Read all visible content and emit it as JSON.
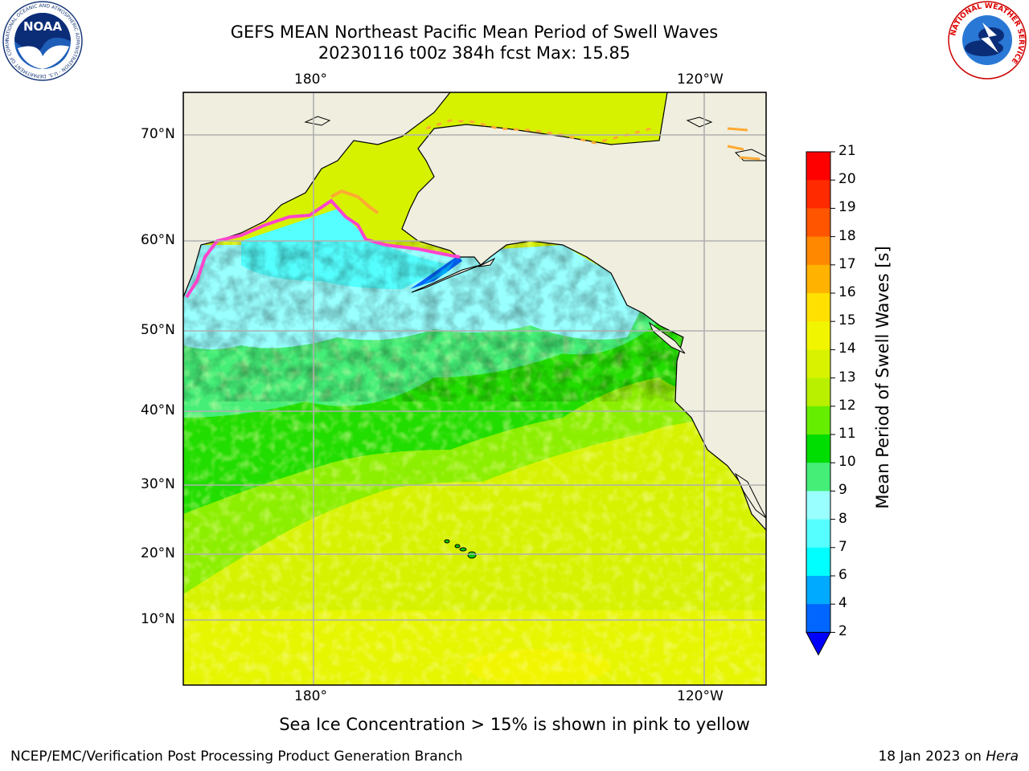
{
  "header": {
    "title_line1": "GEFS MEAN Northeast Pacific Mean Period of Swell Waves",
    "title_line2": "20230116 t00z 384h fcst   Max: 15.85"
  },
  "map": {
    "region": "Northeast Pacific",
    "variable": "Mean Period of Swell Waves",
    "units": "s",
    "max_value": 15.85,
    "top_lon_labels": [
      "180°",
      "120°W"
    ],
    "bottom_lon_labels": [
      "180°",
      "120°W"
    ],
    "lat_labels": [
      "70°N",
      "60°N",
      "50°N",
      "40°N",
      "30°N",
      "20°N",
      "10°N"
    ],
    "colors": {
      "land": "#efeedf",
      "ice_pink": "#ff44cc",
      "ice_orange": "#ffaa33",
      "grid": "#b0b0b0"
    }
  },
  "colorbar": {
    "label": "Mean Period of Swell Waves [s]",
    "ticks": [
      "21",
      "20",
      "19",
      "18",
      "17",
      "16",
      "15",
      "14",
      "13",
      "12",
      "11",
      "10",
      "9",
      "8",
      "7",
      "6",
      "4",
      "2"
    ],
    "bands": [
      {
        "from": 20,
        "to": 21,
        "color": "#ff0000"
      },
      {
        "from": 19,
        "to": 20,
        "color": "#ff2a00"
      },
      {
        "from": 18,
        "to": 19,
        "color": "#ff5500"
      },
      {
        "from": 17,
        "to": 18,
        "color": "#ff8800"
      },
      {
        "from": 16,
        "to": 17,
        "color": "#ffb300"
      },
      {
        "from": 15,
        "to": 16,
        "color": "#ffe000"
      },
      {
        "from": 14,
        "to": 15,
        "color": "#f2f500"
      },
      {
        "from": 13,
        "to": 14,
        "color": "#d8f200"
      },
      {
        "from": 12,
        "to": 13,
        "color": "#b8f000"
      },
      {
        "from": 11,
        "to": 12,
        "color": "#66ee00"
      },
      {
        "from": 10,
        "to": 11,
        "color": "#00dd00"
      },
      {
        "from": 9,
        "to": 10,
        "color": "#44ee77"
      },
      {
        "from": 8,
        "to": 9,
        "color": "#99ffff"
      },
      {
        "from": 7,
        "to": 8,
        "color": "#55ffff"
      },
      {
        "from": 6,
        "to": 7,
        "color": "#00ffff"
      },
      {
        "from": 4,
        "to": 6,
        "color": "#00aaff"
      },
      {
        "from": 2,
        "to": 4,
        "color": "#0066ff"
      }
    ],
    "under_color": "#0000ff"
  },
  "notes": {
    "sea_ice": "Sea Ice Concentration > 15% is shown in pink to yellow"
  },
  "footer": {
    "left": "NCEP/EMC/Verification Post Processing Product Generation Branch",
    "right_date": "18 Jan 2023 on",
    "right_host": "Hera"
  },
  "logos": {
    "noaa_text": "NOAA",
    "noaa_ring": "NATIONAL OCEANIC AND ATMOSPHERIC ADMINISTRATION · U.S. DEPARTMENT OF COMMERCE",
    "nws_ring": "NATIONAL WEATHER SERVICE"
  }
}
